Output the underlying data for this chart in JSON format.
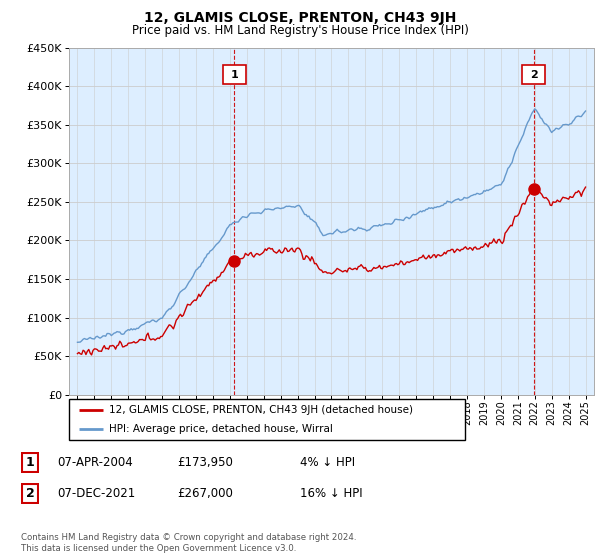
{
  "title": "12, GLAMIS CLOSE, PRENTON, CH43 9JH",
  "subtitle": "Price paid vs. HM Land Registry's House Price Index (HPI)",
  "legend_line1": "12, GLAMIS CLOSE, PRENTON, CH43 9JH (detached house)",
  "legend_line2": "HPI: Average price, detached house, Wirral",
  "sale1_label": "1",
  "sale1_date": "07-APR-2004",
  "sale1_price": "£173,950",
  "sale1_hpi": "4% ↓ HPI",
  "sale1_year": 2004.27,
  "sale1_value": 173950,
  "sale2_label": "2",
  "sale2_date": "07-DEC-2021",
  "sale2_price": "£267,000",
  "sale2_hpi": "16% ↓ HPI",
  "sale2_year": 2021.93,
  "sale2_value": 267000,
  "ylabel_max": 450000,
  "ylabel_step": 50000,
  "xmin": 1994.5,
  "xmax": 2025.5,
  "line_color_red": "#cc0000",
  "line_color_blue": "#6699cc",
  "vline_color": "#cc0000",
  "grid_color": "#cccccc",
  "chart_bg": "#ddeeff",
  "background_color": "#ffffff",
  "footer": "Contains HM Land Registry data © Crown copyright and database right 2024.\nThis data is licensed under the Open Government Licence v3.0."
}
